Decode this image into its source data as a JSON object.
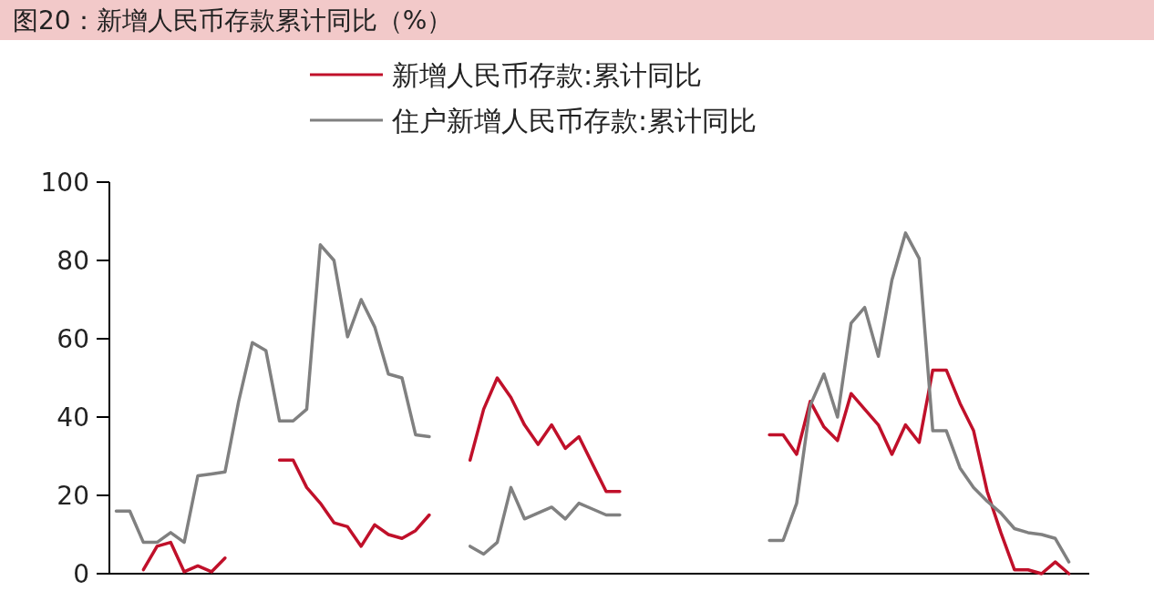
{
  "chart_data": {
    "type": "line",
    "title": "图20：新增人民币存款累计同比（%）",
    "categories": [
      null,
      null,
      null,
      null,
      null,
      null,
      null,
      null,
      null,
      null,
      null,
      null,
      null,
      null,
      null,
      null,
      null,
      null,
      null,
      null,
      null,
      null,
      null,
      null,
      null,
      null,
      null,
      null,
      null,
      null,
      null,
      null,
      null,
      null,
      null,
      null,
      null,
      null,
      null,
      null,
      null,
      null,
      null,
      null,
      null,
      null,
      null,
      null,
      null,
      null,
      null,
      null,
      null,
      null,
      null,
      null,
      null,
      null,
      null,
      null,
      null,
      null,
      null,
      null,
      null,
      null,
      null,
      null,
      null,
      null,
      null,
      null
    ],
    "series": [
      {
        "name": "新增人民币存款:累计同比",
        "color": "#c0102a",
        "values": [
          null,
          null,
          1,
          7,
          8,
          0.5,
          2,
          0.5,
          4,
          null,
          null,
          null,
          29,
          29,
          22,
          18,
          13,
          12,
          7,
          12.5,
          10,
          9,
          11,
          15,
          null,
          null,
          29,
          42,
          50,
          45,
          38,
          33,
          38,
          32,
          35,
          28,
          21,
          21,
          null,
          null,
          null,
          null,
          null,
          null,
          null,
          null,
          null,
          null,
          35.5,
          35.5,
          30.5,
          44,
          37.5,
          34,
          46,
          42,
          38,
          30.5,
          38,
          33.5,
          52,
          52,
          43.5,
          36.5,
          21,
          10.5,
          1,
          1,
          0,
          3,
          0,
          null
        ]
      },
      {
        "name": "住户新增人民币存款:累计同比",
        "color": "#808080",
        "values": [
          16,
          16,
          8,
          8,
          10.5,
          8,
          25,
          25.5,
          26,
          44,
          59,
          57,
          39,
          39,
          42,
          84,
          80,
          60.5,
          70,
          63,
          51,
          50,
          35.5,
          35,
          null,
          null,
          7,
          5,
          8,
          22,
          14,
          15.5,
          17,
          14,
          18,
          16.5,
          15,
          15,
          null,
          null,
          null,
          null,
          null,
          null,
          null,
          null,
          null,
          null,
          8.5,
          8.5,
          18,
          43,
          51,
          40,
          64,
          68,
          55.5,
          75,
          87,
          80.5,
          36.5,
          36.5,
          27,
          22,
          18.5,
          15.5,
          11.5,
          10.5,
          10,
          9,
          3,
          null
        ]
      }
    ],
    "ylim": [
      0,
      100
    ],
    "yticks": [
      0,
      20,
      40,
      60,
      80,
      100
    ],
    "legend": "top",
    "grid": false
  }
}
